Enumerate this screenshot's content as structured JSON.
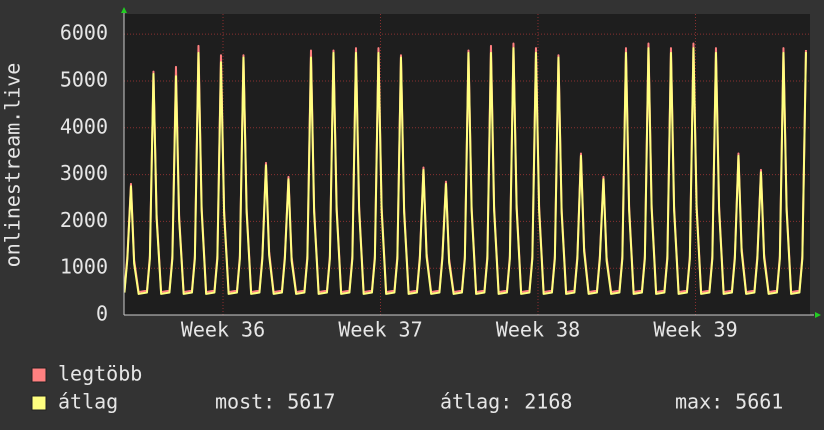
{
  "chart_data": {
    "type": "line",
    "y_label": "onlinestream.live",
    "x": [
      0.02,
      0.15,
      0.31,
      0.45,
      0.65,
      1.02,
      1.15,
      1.31,
      1.45,
      1.65,
      2.02,
      2.15,
      2.31,
      2.45,
      2.65,
      3.02,
      3.15,
      3.31,
      3.45,
      3.65,
      4.02,
      4.15,
      4.31,
      4.45,
      4.65,
      5.02,
      5.15,
      5.31,
      5.45,
      5.65,
      6.02,
      6.15,
      6.31,
      6.45,
      6.65,
      7.02,
      7.15,
      7.31,
      7.45,
      7.65,
      8.02,
      8.15,
      8.31,
      8.45,
      8.65,
      9.02,
      9.15,
      9.31,
      9.45,
      9.65,
      10.02,
      10.15,
      10.31,
      10.45,
      10.65,
      11.02,
      11.15,
      11.31,
      11.45,
      11.65,
      12.02,
      12.15,
      12.31,
      12.45,
      12.65,
      13.02,
      13.15,
      13.31,
      13.45,
      13.65,
      14.02,
      14.15,
      14.31,
      14.45,
      14.65,
      15.02,
      15.15,
      15.31,
      15.45,
      15.65,
      16.02,
      16.15,
      16.31,
      16.45,
      16.65,
      17.02,
      17.15,
      17.31,
      17.45,
      17.65,
      18.02,
      18.15,
      18.31,
      18.45,
      18.65,
      19.02,
      19.15,
      19.31,
      19.45,
      19.65,
      20.02,
      20.15,
      20.31,
      20.45,
      20.65,
      21.02,
      21.15,
      21.31,
      21.45,
      21.65,
      22.02,
      22.15,
      22.31,
      22.45,
      22.65,
      23.02,
      23.15,
      23.31,
      23.45,
      23.65,
      24.02,
      24.15,
      24.31,
      24.45,
      24.65,
      25.02,
      25.15,
      25.31,
      25.45,
      25.65,
      26.02,
      26.15,
      26.31,
      26.45,
      26.65,
      27.02,
      27.15,
      27.31,
      27.45,
      27.65,
      28.02,
      28.15,
      28.31,
      28.45,
      28.65,
      29.02,
      29.15,
      29.31,
      29.45,
      29.65,
      30.02,
      30.15,
      30.31
    ],
    "series": [
      {
        "name": "legtöbb",
        "color": "#ff8080",
        "values": [
          520,
          1260,
          2800,
          1180,
          490,
          520,
          1260,
          5200,
          2140,
          490,
          520,
          1260,
          5300,
          2120,
          490,
          520,
          1260,
          5750,
          2320,
          490,
          520,
          1260,
          5550,
          2240,
          490,
          520,
          1260,
          5550,
          2280,
          490,
          520,
          1260,
          3250,
          1360,
          490,
          520,
          1260,
          2950,
          1240,
          490,
          520,
          1260,
          5650,
          2280,
          490,
          520,
          1260,
          5650,
          2320,
          490,
          520,
          1260,
          5700,
          2320,
          490,
          520,
          1260,
          5700,
          2320,
          490,
          520,
          1260,
          5550,
          2280,
          490,
          520,
          1260,
          3150,
          1320,
          490,
          520,
          1260,
          2850,
          1200,
          490,
          520,
          1260,
          5650,
          2320,
          490,
          520,
          1260,
          5750,
          2320,
          490,
          520,
          1260,
          5800,
          2360,
          490,
          520,
          1260,
          5700,
          2320,
          490,
          520,
          1260,
          5550,
          2280,
          490,
          520,
          1260,
          3450,
          1440,
          490,
          520,
          1260,
          2950,
          1240,
          490,
          520,
          1260,
          5700,
          2320,
          490,
          520,
          1260,
          5800,
          2360,
          490,
          520,
          1260,
          5700,
          2320,
          490,
          520,
          1260,
          5800,
          2360,
          490,
          520,
          1260,
          5700,
          2320,
          490,
          520,
          1260,
          3450,
          1440,
          490,
          520,
          1260,
          3100,
          1300,
          490,
          520,
          1260,
          5700,
          2320,
          490,
          520,
          1260,
          5661
        ]
      },
      {
        "name": "átlag",
        "color": "#ffff80",
        "values": [
          480,
          1200,
          2750,
          1100,
          450,
          480,
          1200,
          5150,
          2060,
          450,
          480,
          1200,
          5100,
          2040,
          450,
          480,
          1200,
          5600,
          2240,
          450,
          480,
          1200,
          5400,
          2160,
          450,
          480,
          1200,
          5500,
          2200,
          450,
          480,
          1200,
          3200,
          1280,
          450,
          480,
          1200,
          2900,
          1160,
          450,
          480,
          1200,
          5500,
          2200,
          450,
          480,
          1200,
          5600,
          2240,
          450,
          480,
          1200,
          5600,
          2240,
          450,
          480,
          1200,
          5600,
          2240,
          450,
          480,
          1200,
          5500,
          2200,
          450,
          480,
          1200,
          3100,
          1240,
          450,
          480,
          1200,
          2800,
          1120,
          450,
          480,
          1200,
          5600,
          2240,
          450,
          480,
          1200,
          5600,
          2240,
          450,
          480,
          1200,
          5700,
          2280,
          450,
          480,
          1200,
          5600,
          2240,
          450,
          480,
          1200,
          5500,
          2200,
          450,
          480,
          1200,
          3400,
          1360,
          450,
          480,
          1200,
          2900,
          1160,
          450,
          480,
          1200,
          5600,
          2240,
          450,
          480,
          1200,
          5700,
          2280,
          450,
          480,
          1200,
          5600,
          2240,
          450,
          480,
          1200,
          5700,
          2280,
          450,
          480,
          1200,
          5600,
          2240,
          450,
          480,
          1200,
          3400,
          1360,
          450,
          480,
          1200,
          3050,
          1220,
          450,
          480,
          1200,
          5600,
          2240,
          450,
          480,
          1200,
          5617
        ]
      }
    ],
    "xlim": [
      0,
      30.49
    ],
    "xticks": [
      {
        "value": 4.4,
        "label": "Week 36"
      },
      {
        "value": 11.4,
        "label": "Week 37"
      },
      {
        "value": 18.4,
        "label": "Week 38"
      },
      {
        "value": 25.4,
        "label": "Week 39"
      }
    ],
    "ylim": [
      0,
      6430
    ],
    "yticks": [
      0,
      1000,
      2000,
      3000,
      4000,
      5000,
      6000
    ],
    "grid": true,
    "stats": [
      {
        "label": "most:",
        "value": 5617
      },
      {
        "label": "átlag:",
        "value": 2168
      },
      {
        "label": "max:",
        "value": 5661
      }
    ]
  }
}
